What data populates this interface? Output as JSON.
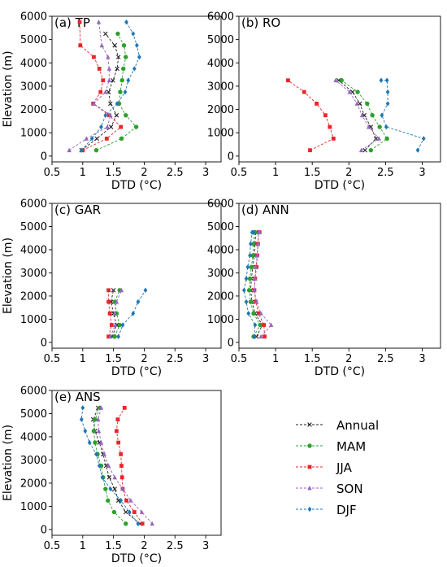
{
  "colors": {
    "Annual": "#222222",
    "MAM": "#2ca02c",
    "JJA": "#e8262a",
    "SON": "#9467bd",
    "DJF": "#1f77b4"
  },
  "legend": {
    "placement": "right",
    "entries": [
      "Annual",
      "MAM",
      "JJA",
      "SON",
      "DJF"
    ]
  },
  "chart_data": [
    {
      "type": "line",
      "title": "(a) TP",
      "xlabel": "DTD (°C)",
      "ylabel": "Elevation (m)",
      "xlim": [
        0.5,
        3.25
      ],
      "ylim": [
        -250,
        6000
      ],
      "x_ticks": [
        "0.5",
        "1",
        "1.5",
        "2",
        "2.5",
        "3"
      ],
      "y_ticks": [
        "0",
        "1000",
        "2000",
        "3000",
        "4000",
        "5000",
        "6000"
      ],
      "series": [
        {
          "name": "Annual",
          "x": [
            0.98,
            1.23,
            1.46,
            1.55,
            1.45,
            1.42,
            1.49,
            1.56,
            1.58,
            1.52,
            1.37
          ],
          "y": [
            250,
            750,
            1250,
            1750,
            2250,
            2750,
            3250,
            3750,
            4250,
            4750,
            5250
          ]
        },
        {
          "name": "MAM",
          "x": [
            1.22,
            1.63,
            1.87,
            1.7,
            1.59,
            1.61,
            1.64,
            1.66,
            1.7,
            1.67,
            1.57
          ],
          "y": [
            250,
            750,
            1250,
            1750,
            2250,
            2750,
            3250,
            3750,
            4250,
            4750,
            5250
          ]
        },
        {
          "name": "JJA",
          "x": [
            1.0,
            1.39,
            1.62,
            1.43,
            1.17,
            1.29,
            1.33,
            1.27,
            1.18,
            0.96,
            0.95
          ],
          "y": [
            250,
            750,
            1250,
            1750,
            2250,
            2750,
            3250,
            3750,
            4250,
            4750,
            5750
          ]
        },
        {
          "name": "SON",
          "x": [
            0.78,
            1.06,
            1.4,
            1.45,
            1.18,
            1.37,
            1.43,
            1.43,
            1.41,
            1.31,
            1.26
          ],
          "y": [
            250,
            750,
            1250,
            1750,
            2250,
            2750,
            3250,
            3750,
            4250,
            4750,
            5750
          ]
        },
        {
          "name": "DJF",
          "x": [
            0.98,
            1.15,
            1.3,
            1.37,
            1.56,
            1.69,
            1.74,
            1.84,
            1.92,
            1.88,
            1.82,
            1.71
          ],
          "y": [
            250,
            750,
            1250,
            1750,
            2250,
            2750,
            3250,
            3750,
            4250,
            4750,
            5250,
            5750
          ]
        }
      ]
    },
    {
      "type": "line",
      "title": "(b) RO",
      "xlabel": "DTD (°C)",
      "ylabel": "",
      "xlim": [
        0.5,
        3.25
      ],
      "ylim": [
        -250,
        6000
      ],
      "x_ticks": [
        "0.5",
        "1",
        "1.5",
        "2",
        "2.5",
        "3"
      ],
      "y_ticks": [
        "0",
        "1000",
        "2000",
        "3000",
        "4000",
        "5000",
        "6000"
      ],
      "series": [
        {
          "name": "Annual",
          "x": [
            2.22,
            2.37,
            2.3,
            2.21,
            2.15,
            2.05,
            1.86
          ],
          "y": [
            250,
            750,
            1250,
            1750,
            2250,
            2750,
            3250
          ]
        },
        {
          "name": "MAM",
          "x": [
            2.3,
            2.52,
            2.42,
            2.32,
            2.25,
            2.12,
            1.9
          ],
          "y": [
            250,
            750,
            1250,
            1750,
            2250,
            2750,
            3250
          ]
        },
        {
          "name": "JJA",
          "x": [
            1.47,
            1.79,
            1.74,
            1.68,
            1.56,
            1.39,
            1.17
          ],
          "y": [
            250,
            750,
            1250,
            1750,
            2250,
            2750,
            3250
          ]
        },
        {
          "name": "SON",
          "x": [
            2.17,
            2.41,
            2.27,
            2.18,
            2.11,
            2.01,
            1.82
          ],
          "y": [
            250,
            750,
            1250,
            1750,
            2250,
            2750,
            3250
          ]
        },
        {
          "name": "DJF",
          "x": [
            2.94,
            3.02,
            2.51,
            2.45,
            2.53,
            2.53,
            2.52,
            2.44
          ],
          "y": [
            250,
            750,
            1250,
            1750,
            2250,
            2750,
            3250,
            3250
          ]
        }
      ]
    },
    {
      "type": "line",
      "title": "(c) GAR",
      "xlabel": "DTD (°C)",
      "ylabel": "Elevation (m)",
      "xlim": [
        0.5,
        3.25
      ],
      "ylim": [
        -250,
        6000
      ],
      "x_ticks": [
        "0.5",
        "1",
        "1.5",
        "2",
        "2.5",
        "3"
      ],
      "y_ticks": [
        "0",
        "1000",
        "2000",
        "3000",
        "4000",
        "5000",
        "6000"
      ],
      "series": [
        {
          "name": "Annual",
          "x": [
            1.48,
            1.55,
            1.5,
            1.46,
            1.5
          ],
          "y": [
            250,
            750,
            1250,
            1750,
            2250
          ]
        },
        {
          "name": "MAM",
          "x": [
            1.52,
            1.6,
            1.55,
            1.52,
            1.6
          ],
          "y": [
            250,
            750,
            1250,
            1750,
            2250
          ]
        },
        {
          "name": "JJA",
          "x": [
            1.42,
            1.47,
            1.44,
            1.42,
            1.42
          ],
          "y": [
            250,
            750,
            1250,
            1750,
            2250
          ]
        },
        {
          "name": "SON",
          "x": [
            1.45,
            1.53,
            1.52,
            1.55,
            1.63
          ],
          "y": [
            250,
            750,
            1250,
            1750,
            2250
          ]
        },
        {
          "name": "DJF",
          "x": [
            1.58,
            1.65,
            1.82,
            1.9,
            2.02
          ],
          "y": [
            250,
            750,
            1250,
            1750,
            2250
          ]
        }
      ]
    },
    {
      "type": "line",
      "title": "(d) ANN",
      "xlabel": "DTD (°C)",
      "ylabel": "",
      "xlim": [
        0.5,
        3.25
      ],
      "ylim": [
        -250,
        6000
      ],
      "x_ticks": [
        "0.5",
        "1",
        "1.5",
        "2",
        "2.5",
        "3"
      ],
      "y_ticks": [
        "0",
        "1000",
        "2000",
        "3000",
        "4000",
        "5000",
        "6000"
      ],
      "series": [
        {
          "name": "Annual",
          "x": [
            0.74,
            0.82,
            0.72,
            0.68,
            0.66,
            0.67,
            0.69,
            0.71,
            0.72,
            0.73,
            0.74
          ],
          "y": [
            250,
            750,
            1250,
            1750,
            2250,
            2750,
            3250,
            3750,
            4250,
            4750,
            4750
          ]
        },
        {
          "name": "MAM",
          "x": [
            0.7,
            0.79,
            0.7,
            0.66,
            0.64,
            0.65,
            0.67,
            0.69,
            0.7,
            0.71,
            0.72
          ],
          "y": [
            250,
            750,
            1250,
            1750,
            2250,
            2750,
            3250,
            3750,
            4250,
            4750,
            4750
          ]
        },
        {
          "name": "JJA",
          "x": [
            0.85,
            0.84,
            0.77,
            0.73,
            0.71,
            0.72,
            0.74,
            0.75,
            0.76,
            0.77,
            0.78
          ],
          "y": [
            250,
            750,
            1250,
            1750,
            2250,
            2750,
            3250,
            3750,
            4250,
            4750,
            4750
          ]
        },
        {
          "name": "SON",
          "x": [
            0.8,
            0.94,
            0.8,
            0.74,
            0.71,
            0.72,
            0.73,
            0.75,
            0.76,
            0.77,
            0.78
          ],
          "y": [
            250,
            750,
            1250,
            1750,
            2250,
            2750,
            3250,
            3750,
            4250,
            4750,
            4750
          ]
        },
        {
          "name": "DJF",
          "x": [
            0.71,
            0.72,
            0.63,
            0.6,
            0.57,
            0.6,
            0.62,
            0.65,
            0.66,
            0.68,
            0.7
          ],
          "y": [
            250,
            750,
            1250,
            1750,
            2250,
            2750,
            3250,
            3750,
            4250,
            4750,
            4750
          ]
        }
      ]
    },
    {
      "type": "line",
      "title": "(e) ANS",
      "xlabel": "DTD (°C)",
      "ylabel": "Elevation (m)",
      "xlim": [
        0.5,
        3.25
      ],
      "ylim": [
        -250,
        6000
      ],
      "x_ticks": [
        "0.5",
        "1",
        "1.5",
        "2",
        "2.5",
        "3"
      ],
      "y_ticks": [
        "0",
        "1000",
        "2000",
        "3000",
        "4000",
        "5000",
        "6000"
      ],
      "series": [
        {
          "name": "Annual",
          "x": [
            1.93,
            1.7,
            1.58,
            1.52,
            1.43,
            1.38,
            1.33,
            1.27,
            1.2,
            1.17,
            1.25
          ],
          "y": [
            250,
            750,
            1250,
            1750,
            2250,
            2750,
            3250,
            3750,
            4250,
            4750,
            5250
          ]
        },
        {
          "name": "MAM",
          "x": [
            1.7,
            1.51,
            1.41,
            1.37,
            1.33,
            1.3,
            1.24,
            1.2,
            1.18,
            1.2,
            1.28
          ],
          "y": [
            250,
            750,
            1250,
            1750,
            2250,
            2750,
            3250,
            3750,
            4250,
            4750,
            5250
          ]
        },
        {
          "name": "JJA",
          "x": [
            1.97,
            1.84,
            1.71,
            1.65,
            1.64,
            1.63,
            1.62,
            1.58,
            1.55,
            1.57,
            1.68
          ],
          "y": [
            250,
            750,
            1250,
            1750,
            2250,
            2750,
            3250,
            3750,
            4250,
            4750,
            5250
          ]
        },
        {
          "name": "SON",
          "x": [
            2.13,
            1.96,
            1.78,
            1.65,
            1.52,
            1.42,
            1.35,
            1.3,
            1.26,
            1.25,
            1.3
          ],
          "y": [
            250,
            750,
            1250,
            1750,
            2250,
            2750,
            3250,
            3750,
            4250,
            4750,
            5250
          ]
        },
        {
          "name": "DJF",
          "x": [
            1.9,
            1.76,
            1.62,
            1.45,
            1.32,
            1.27,
            1.22,
            1.11,
            1.04,
            0.98,
            1.0
          ],
          "y": [
            250,
            750,
            1250,
            1750,
            2250,
            2750,
            3250,
            3750,
            4250,
            4750,
            5250
          ]
        }
      ]
    }
  ]
}
